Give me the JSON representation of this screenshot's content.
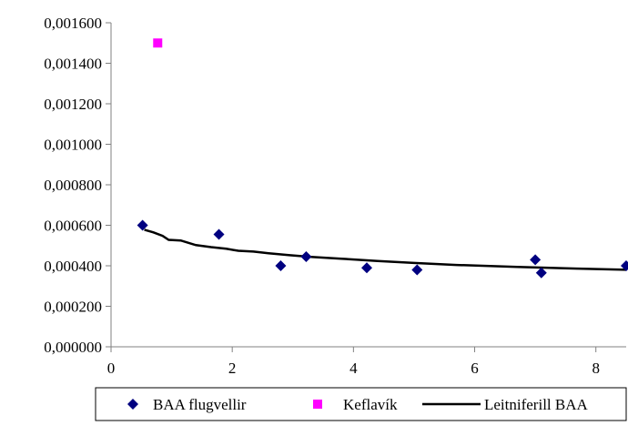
{
  "chart_data": {
    "type": "scatter",
    "title": "",
    "xlabel": "",
    "ylabel": "",
    "xlim": [
      0,
      8.5
    ],
    "ylim": [
      0,
      0.0016
    ],
    "x_ticks": [
      0,
      2,
      4,
      6,
      8
    ],
    "x_tick_labels": [
      "0",
      "2",
      "4",
      "6",
      "8"
    ],
    "y_ticks": [
      0,
      0.0002,
      0.0004,
      0.0006,
      0.0008,
      0.001,
      0.0012,
      0.0014,
      0.0016
    ],
    "y_tick_labels": [
      "0,000000",
      "0,000200",
      "0,000400",
      "0,000600",
      "0,000800",
      "0,001000",
      "0,001200",
      "0,001400",
      "0,001600"
    ],
    "grid": false,
    "legend_position": "bottom",
    "series": [
      {
        "name": "BAA flugvellir",
        "type": "scatter",
        "marker": "diamond",
        "color": "#000080",
        "points": [
          [
            0.52,
            0.0006
          ],
          [
            1.78,
            0.000555
          ],
          [
            2.8,
            0.0004
          ],
          [
            3.22,
            0.000445
          ],
          [
            4.22,
            0.00039
          ],
          [
            5.05,
            0.00038
          ],
          [
            7.0,
            0.00043
          ],
          [
            7.1,
            0.000365
          ],
          [
            8.5,
            0.0004
          ]
        ]
      },
      {
        "name": "Keflavík",
        "type": "scatter",
        "marker": "square",
        "color": "#FF00FF",
        "points": [
          [
            0.77,
            0.0015
          ]
        ]
      },
      {
        "name": "Leitniferill BAA",
        "type": "line",
        "color": "#000000",
        "points": [
          [
            0.55,
            0.000578
          ],
          [
            0.7,
            0.000565
          ],
          [
            0.85,
            0.000548
          ],
          [
            0.95,
            0.000528
          ],
          [
            1.15,
            0.000525
          ],
          [
            1.4,
            0.000502
          ],
          [
            1.65,
            0.000492
          ],
          [
            1.9,
            0.000484
          ],
          [
            2.1,
            0.000474
          ],
          [
            2.35,
            0.00047
          ],
          [
            2.6,
            0.000462
          ],
          [
            2.95,
            0.000452
          ],
          [
            3.3,
            0.000444
          ],
          [
            3.8,
            0.000435
          ],
          [
            4.4,
            0.000424
          ],
          [
            5.0,
            0.000414
          ],
          [
            5.7,
            0.000404
          ],
          [
            6.7,
            0.000394
          ],
          [
            7.7,
            0.000386
          ],
          [
            8.5,
            0.00038
          ]
        ]
      }
    ]
  }
}
